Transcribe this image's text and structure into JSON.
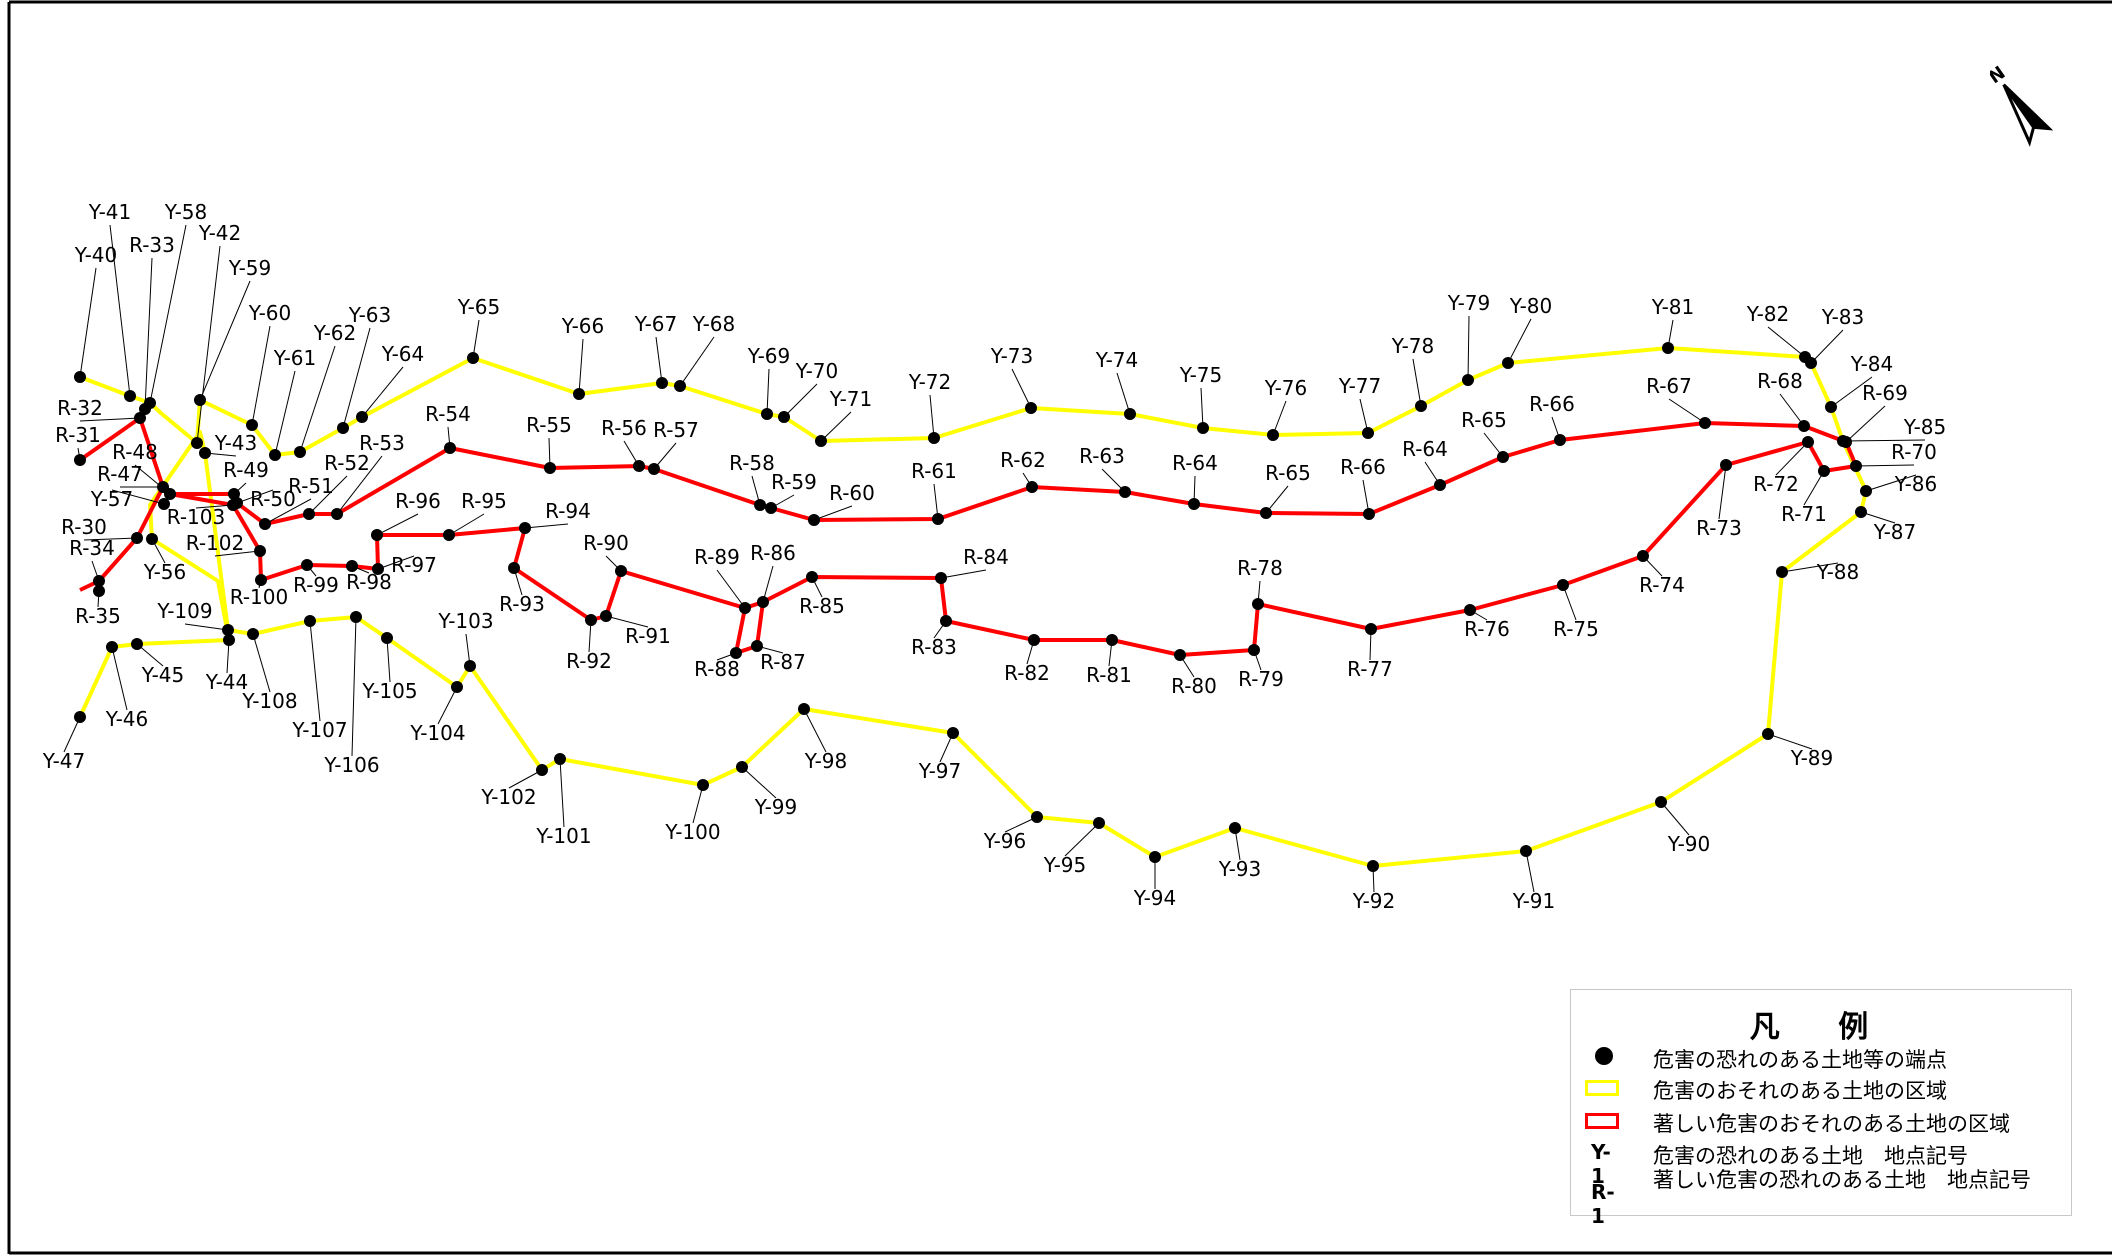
{
  "map": {
    "colors": {
      "hazard_zone": "#ffff00",
      "severe_hazard_zone": "#ff0000",
      "vertex": "#000000",
      "frame": "#000000"
    },
    "north_label": "N",
    "yellow_points": [
      "Y-40",
      "Y-41",
      "Y-42",
      "Y-43",
      "Y-44",
      "Y-45",
      "Y-46",
      "Y-47",
      "Y-56",
      "Y-57",
      "Y-58",
      "Y-59",
      "Y-60",
      "Y-61",
      "Y-62",
      "Y-63",
      "Y-64",
      "Y-65",
      "Y-66",
      "Y-67",
      "Y-68",
      "Y-69",
      "Y-70",
      "Y-71",
      "Y-72",
      "Y-73",
      "Y-74",
      "Y-75",
      "Y-76",
      "Y-77",
      "Y-78",
      "Y-79",
      "Y-80",
      "Y-81",
      "Y-82",
      "Y-83",
      "Y-84",
      "Y-85",
      "Y-86",
      "Y-87",
      "Y-88",
      "Y-89",
      "Y-90",
      "Y-91",
      "Y-92",
      "Y-93",
      "Y-94",
      "Y-95",
      "Y-96",
      "Y-97",
      "Y-98",
      "Y-99",
      "Y-100",
      "Y-101",
      "Y-102",
      "Y-103",
      "Y-104",
      "Y-105",
      "Y-106",
      "Y-107",
      "Y-108",
      "Y-109"
    ],
    "red_points": [
      "R-30",
      "R-31",
      "R-32",
      "R-33",
      "R-34",
      "R-35",
      "R-47",
      "R-48",
      "R-49",
      "R-50",
      "R-51",
      "R-52",
      "R-53",
      "R-54",
      "R-55",
      "R-56",
      "R-57",
      "R-58",
      "R-59",
      "R-60",
      "R-61",
      "R-62",
      "R-63",
      "R-64",
      "R-65",
      "R-66",
      "R-67",
      "R-68",
      "R-69",
      "R-70",
      "R-71",
      "R-72",
      "R-73",
      "R-74",
      "R-75",
      "R-76",
      "R-77",
      "R-78",
      "R-79",
      "R-80",
      "R-81",
      "R-82",
      "R-83",
      "R-84",
      "R-85",
      "R-86",
      "R-87",
      "R-88",
      "R-89",
      "R-90",
      "R-91",
      "R-92",
      "R-93",
      "R-94",
      "R-95",
      "R-96",
      "R-97",
      "R-98",
      "R-99",
      "R-100",
      "R-102",
      "R-103"
    ]
  },
  "legend": {
    "title": "凡 例",
    "items": [
      {
        "symbol": "dot",
        "text": "危害の恐れのある土地等の端点"
      },
      {
        "symbol": "yellow-box",
        "text": "危害のおそれのある土地の区域"
      },
      {
        "symbol": "red-box",
        "text": "著しい危害のおそれのある土地の区域"
      },
      {
        "symbol": "Y-1",
        "text": "危害の恐れのある土地　地点記号"
      },
      {
        "symbol": "R-1",
        "text": "著しい危害の恐れのある土地　地点記号"
      }
    ]
  }
}
